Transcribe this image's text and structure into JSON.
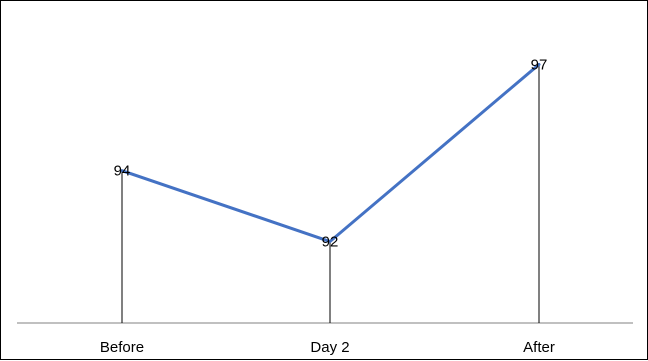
{
  "chart_data": {
    "type": "line",
    "categories": [
      "Before",
      "Day 2",
      "After"
    ],
    "series": [
      {
        "values": [
          94,
          92,
          97
        ]
      }
    ],
    "data_labels": [
      "94",
      "92",
      "97"
    ],
    "ylim": [
      89.7,
      98.0
    ],
    "grid": false,
    "legend": "none",
    "drop_lines": true,
    "colors": {
      "line": "#4472C4",
      "drop_line": "#000000",
      "axis": "#808080",
      "text": "#000000"
    }
  }
}
